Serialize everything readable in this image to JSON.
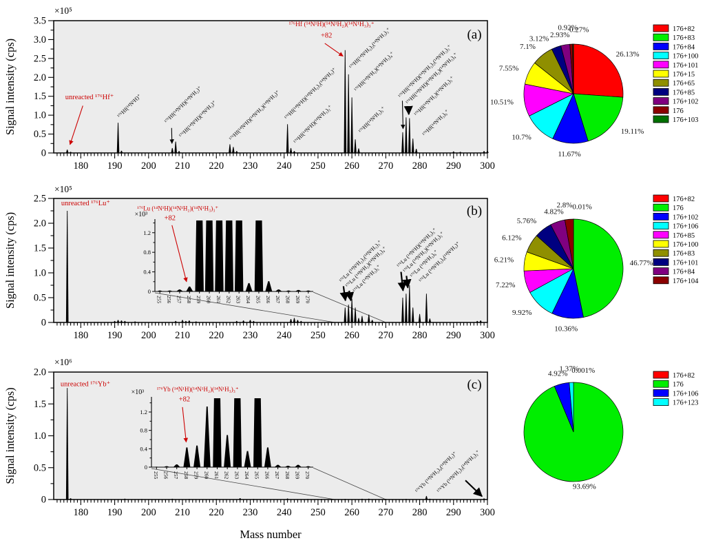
{
  "figure": {
    "xlabel": "Mass number",
    "ylabel": "Signal intensity (cps)",
    "plot_bg": "#ececec",
    "accent_red": "#cc0000",
    "panel_tags": [
      "(a)",
      "(b)",
      "(c)"
    ]
  },
  "chart_data": [
    {
      "id": "spec-a",
      "type": "bar",
      "panel_tag": "(a)",
      "ylabel": "Signal intensity (cps)",
      "scale_label": "×10⁵",
      "xlim": [
        172,
        300
      ],
      "ylim": [
        0,
        3.5
      ],
      "xticks": [
        180,
        190,
        200,
        210,
        220,
        230,
        240,
        250,
        260,
        270,
        280,
        290,
        300
      ],
      "yticks": [
        "0",
        "0.5",
        "1.0",
        "1.5",
        "2.0",
        "2.5",
        "3.0",
        "3.5"
      ],
      "peaks": [
        [
          176,
          0.09
        ],
        [
          177,
          0.03
        ],
        [
          191,
          0.8
        ],
        [
          192,
          0.06
        ],
        [
          207,
          0.13
        ],
        [
          208,
          0.3
        ],
        [
          209,
          0.05
        ],
        [
          224,
          0.23
        ],
        [
          225,
          0.16
        ],
        [
          226,
          0.05
        ],
        [
          241,
          0.76
        ],
        [
          242,
          0.13
        ],
        [
          243,
          0.05
        ],
        [
          258,
          2.72
        ],
        [
          259,
          2.08
        ],
        [
          260,
          1.47
        ],
        [
          261,
          0.36
        ],
        [
          262,
          0.12
        ],
        [
          275,
          0.55
        ],
        [
          276,
          0.94
        ],
        [
          277,
          0.92
        ],
        [
          278,
          0.38
        ],
        [
          279,
          0.11
        ],
        [
          290,
          0.04
        ],
        [
          292,
          0.03
        ],
        [
          299,
          0.05
        ],
        [
          300,
          0.06
        ]
      ],
      "annotations": [
        {
          "text": "unreacted ¹⁷⁶Hf⁺",
          "color": "#cc0000",
          "x": 175.4,
          "y": 1.42,
          "anchor": "start",
          "fs": 10.5,
          "arrow": [
            180.6,
            1.25,
            176.8,
            0.22
          ]
        },
        {
          "text": "¹⁷⁶Hf(¹⁴N¹H)⁺",
          "rot": -45,
          "x": 191.4,
          "y": 0.92,
          "fs": 8
        },
        {
          "text": "¹⁷⁶Hf(¹⁴N¹H)(¹⁴N¹H₂)⁺",
          "rot": -45,
          "x": 205.3,
          "y": 0.78,
          "fs": 8,
          "arrow": [
            206.8,
            0.66,
            206.9,
            0.25
          ]
        },
        {
          "text": "¹⁷⁶Hf(¹⁴N¹H)(¹⁴N¹H₃)⁺",
          "rot": -45,
          "x": 209.6,
          "y": 0.4,
          "fs": 8
        },
        {
          "text": "¹⁷⁶Hf(¹⁴N¹H)(¹⁴N¹H₂)(¹⁴N¹H₃)⁺",
          "rot": -45,
          "x": 224.4,
          "y": 0.32,
          "fs": 8
        },
        {
          "text": "¹⁷⁶Hf(¹⁴N¹H)(¹⁴N¹H₂)₂(¹⁴N¹H₃)⁺",
          "rot": -45,
          "x": 240.7,
          "y": 0.88,
          "fs": 8
        },
        {
          "text": "¹⁷⁶Hf(¹⁴N¹H)(¹⁴N¹H₃)₂⁺",
          "rot": -45,
          "x": 243.4,
          "y": 0.24,
          "fs": 8
        },
        {
          "text": "¹⁷⁶Hf (¹⁴N¹H)(¹⁴N¹H₂)(¹⁴N¹H₃)₃⁺",
          "color": "#cc0000",
          "x": 254,
          "y": 3.35,
          "anchor": "middle",
          "fs": 9.5
        },
        {
          "text": "+82",
          "color": "#cc0000",
          "x": 252.5,
          "y": 3.05,
          "anchor": "middle",
          "fs": 10.5,
          "arrow": [
            252,
            2.9,
            257.4,
            2.56
          ]
        },
        {
          "text": "¹⁷⁶Hf(¹⁴N¹H₂)₂(¹⁴N¹H₃)₃⁺",
          "rot": -45,
          "x": 259.8,
          "y": 2.22,
          "fs": 8
        },
        {
          "text": "¹⁷⁶Hf(¹⁴N¹H₂)(¹⁴N¹H₃)₄⁺",
          "rot": -45,
          "x": 261.3,
          "y": 1.62,
          "fs": 8
        },
        {
          "text": "¹⁷⁶Hf(¹⁴N¹H₃)₅⁺",
          "rot": -45,
          "x": 262.6,
          "y": 0.52,
          "fs": 8
        },
        {
          "text": "¹⁷⁶Hf(¹⁴N¹H)(¹⁴N¹H₂)₂(¹⁴N¹H₃)₃⁺",
          "rot": -45,
          "x": 274.3,
          "y": 1.45,
          "fs": 8,
          "arrow": [
            274.9,
            1.38,
            275.1,
            0.64
          ]
        },
        {
          "text": "¹⁷⁶Hf(¹⁴N¹H)(¹⁴N¹H₂)(¹⁴N¹H₃)₄⁺",
          "rot": -45,
          "x": 276.5,
          "y": 1.28,
          "fs": 8,
          "arrow": [
            276.7,
            1.2,
            276.8,
            1.02
          ],
          "bold": true
        },
        {
          "text": "¹⁷⁶Hf(¹⁴N¹H₂)(¹⁴N¹H₃)₅⁺",
          "rot": -45,
          "x": 279.0,
          "y": 0.97,
          "fs": 8
        },
        {
          "text": "¹⁷⁶Hf(¹⁴N¹H₃)₆⁺",
          "rot": -45,
          "x": 281.4,
          "y": 0.44,
          "fs": 8
        }
      ]
    },
    {
      "id": "pie-a",
      "type": "pie",
      "slices": [
        {
          "label": "176+82",
          "pct": "26.13",
          "color": "#ff0000",
          "lr": 1.17
        },
        {
          "label": "176+83",
          "pct": "19.11",
          "color": "#00ee00"
        },
        {
          "label": "176+84",
          "pct": "11.67",
          "color": "#0000ff"
        },
        {
          "label": "176+100",
          "pct": "10.7",
          "color": "#00ffff"
        },
        {
          "label": "176+101",
          "pct": "10.51",
          "color": "#ff00ff"
        },
        {
          "label": "176+15",
          "pct": "7.55",
          "color": "#ffff00"
        },
        {
          "label": "176+65",
          "pct": "7.1",
          "color": "#8f8f00"
        },
        {
          "label": "176+85",
          "pct": "3.12",
          "color": "#000080",
          "la": 336
        },
        {
          "label": "176+102",
          "pct": "2.93",
          "color": "#800080",
          "la": 347
        },
        {
          "label": "176",
          "pct": "0.92",
          "color": "#8b0000",
          "la": 355,
          "lr": 1.34
        },
        {
          "label": "176+103",
          "pct": "0.27",
          "color": "#007000",
          "la": 5,
          "lr": 1.3
        }
      ]
    },
    {
      "id": "spec-b",
      "type": "bar",
      "panel_tag": "(b)",
      "ylabel": "Signal intensity (cps)",
      "scale_label": "×10⁵",
      "xlim": [
        172,
        300
      ],
      "ylim": [
        0,
        2.5
      ],
      "xticks": [
        180,
        190,
        200,
        210,
        220,
        230,
        240,
        250,
        260,
        270,
        280,
        290,
        300
      ],
      "yticks": [
        "0",
        "0.5",
        "1.0",
        "1.5",
        "2.0",
        "2.5"
      ],
      "peaks": [
        [
          176,
          2.25
        ],
        [
          190,
          0.03
        ],
        [
          191,
          0.05
        ],
        [
          192,
          0.04
        ],
        [
          193,
          0.03
        ],
        [
          196,
          0.02
        ],
        [
          208,
          0.03
        ],
        [
          210,
          0.05
        ],
        [
          211,
          0.03
        ],
        [
          212,
          0.04
        ],
        [
          214,
          0.02
        ],
        [
          226,
          0.03
        ],
        [
          228,
          0.04
        ],
        [
          230,
          0.05
        ],
        [
          231,
          0.03
        ],
        [
          242,
          0.07
        ],
        [
          243,
          0.09
        ],
        [
          244,
          0.05
        ],
        [
          245,
          0.03
        ],
        [
          258,
          0.3
        ],
        [
          259,
          0.36
        ],
        [
          260,
          0.48
        ],
        [
          261,
          0.3
        ],
        [
          262,
          0.09
        ],
        [
          263,
          0.13
        ],
        [
          265,
          0.16
        ],
        [
          266,
          0.05
        ],
        [
          275,
          0.5
        ],
        [
          276,
          0.58
        ],
        [
          277,
          0.75
        ],
        [
          278,
          0.3
        ],
        [
          280,
          0.17
        ],
        [
          282,
          0.58
        ],
        [
          283,
          0.08
        ],
        [
          297,
          0.03
        ],
        [
          298,
          0.04
        ]
      ],
      "inset": {
        "scale_label": "×10³",
        "xlim": [
          254.5,
          270.5
        ],
        "xticks": [
          255,
          256,
          257,
          258,
          259,
          260,
          261,
          262,
          263,
          264,
          265,
          266,
          267,
          268,
          269,
          270
        ],
        "ylim": [
          0,
          1.45
        ],
        "yticks": [
          "0",
          "0.4",
          "0.8",
          "1.2"
        ],
        "bars": [
          [
            255,
            0.02
          ],
          [
            256,
            0.02
          ],
          [
            257,
            0.04
          ],
          [
            258,
            0.1
          ],
          [
            259,
            1.6
          ],
          [
            260,
            1.6
          ],
          [
            261,
            1.6
          ],
          [
            262,
            1.6
          ],
          [
            263,
            1.6
          ],
          [
            264,
            0.17
          ],
          [
            265,
            1.6
          ],
          [
            266,
            0.21
          ],
          [
            267,
            0.04
          ],
          [
            268,
            0.02
          ],
          [
            269,
            0.03
          ],
          [
            270,
            0.02
          ]
        ]
      },
      "annotations": [
        {
          "text": "unreacted ¹⁷⁶Lu⁺",
          "color": "#cc0000",
          "x": 174.2,
          "y": 2.36,
          "anchor": "start",
          "fs": 10.5
        },
        {
          "text": "¹⁷⁶Lu (¹⁴N¹H)(¹⁴N¹H₂)(¹⁴N¹H₃)₃⁺",
          "color": "#cc0000",
          "x": 208.6,
          "y": 2.26,
          "anchor": "middle",
          "fs": 9
        },
        {
          "text": "+82",
          "color": "#cc0000",
          "x": 206.3,
          "y": 2.06,
          "anchor": "middle",
          "fs": 10.5,
          "arrow": [
            206.9,
            1.96,
            211.2,
            0.82
          ]
        },
        {
          "text": "¹⁷⁶Lu (¹⁴N¹H₂)₂(¹⁴N¹H₃)₃⁺",
          "rot": -45,
          "x": 256.9,
          "y": 0.8,
          "fs": 8,
          "arrow": [
            257.5,
            0.73,
            258.1,
            0.44
          ],
          "bold": true
        },
        {
          "text": "¹⁷⁶Lu (¹⁴N¹H₂)(¹⁴N¹H₃)₄⁺",
          "rot": -45,
          "x": 258.7,
          "y": 0.7,
          "fs": 8,
          "arrow": [
            259.2,
            0.64,
            259.7,
            0.44
          ],
          "bold": true
        },
        {
          "text": "¹⁷⁶Lu (¹⁴N¹H₃)₅⁺",
          "rot": -45,
          "x": 260.9,
          "y": 0.6,
          "fs": 8
        },
        {
          "text": "¹⁷⁶Lu (¹⁴N¹H)(¹⁴N¹H₃)₅⁺",
          "rot": -45,
          "x": 273.9,
          "y": 1.1,
          "fs": 8,
          "arrow": [
            274.5,
            1.02,
            275.1,
            0.64
          ],
          "bold": true
        },
        {
          "text": "¹⁷⁶Lu (¹⁴N¹H₂)(¹⁴N¹H₃)₅⁺",
          "rot": -45,
          "x": 275.7,
          "y": 1.0,
          "fs": 8,
          "arrow": [
            276.1,
            0.94,
            276.5,
            0.7
          ],
          "bold": true
        },
        {
          "text": "¹⁷⁶Lu (¹⁴N¹H₃)₆⁺",
          "rot": -45,
          "x": 277.8,
          "y": 0.9,
          "fs": 8
        },
        {
          "text": "¹⁷⁶Lu (¹⁴N¹H₂)₄(¹⁴N¹H₃)⁺",
          "rot": -45,
          "x": 280.4,
          "y": 0.8,
          "fs": 8
        }
      ]
    },
    {
      "id": "pie-b",
      "type": "pie",
      "slices": [
        {
          "label": "176+82",
          "pct": "0.01",
          "color": "#ff0000",
          "la": 8,
          "lr": 1.26
        },
        {
          "label": "176",
          "pct": "46.77",
          "color": "#00ee00",
          "lr": 1.14
        },
        {
          "label": "176+102",
          "pct": "10.36",
          "color": "#0000ff"
        },
        {
          "label": "176+106",
          "pct": "9.92",
          "color": "#00ffff"
        },
        {
          "label": "176+85",
          "pct": "7.22",
          "color": "#ff00ff"
        },
        {
          "label": "176+100",
          "pct": "6.21",
          "color": "#ffff00"
        },
        {
          "label": "176+83",
          "pct": "6.12",
          "color": "#8f8f00"
        },
        {
          "label": "176+101",
          "pct": "5.76",
          "color": "#000080"
        },
        {
          "label": "176+84",
          "pct": "4.82",
          "color": "#800080",
          "la": 341
        },
        {
          "label": "176+104",
          "pct": "2.8",
          "color": "#8b0000",
          "la": 352,
          "lr": 1.3
        }
      ]
    },
    {
      "id": "spec-c",
      "type": "bar",
      "panel_tag": "(c)",
      "ylabel": "Signal intensity (cps)",
      "scale_label": "×10⁶",
      "xlabel": "Mass number",
      "xlim": [
        172,
        300
      ],
      "ylim": [
        0,
        2.0
      ],
      "xticks": [
        180,
        190,
        200,
        210,
        220,
        230,
        240,
        250,
        260,
        270,
        280,
        290,
        300
      ],
      "yticks": [
        "0",
        "0.5",
        "1.0",
        "1.5",
        "2.0"
      ],
      "peaks": [
        [
          176,
          1.75
        ],
        [
          177,
          0.02
        ],
        [
          193,
          0.013
        ],
        [
          198,
          0.008
        ],
        [
          207,
          0.012
        ],
        [
          212,
          0.008
        ],
        [
          220,
          0.008
        ],
        [
          227,
          0.022
        ],
        [
          231,
          0.01
        ],
        [
          241,
          0.016
        ],
        [
          247,
          0.008
        ],
        [
          251,
          0.01
        ],
        [
          258,
          0.009
        ],
        [
          263,
          0.012
        ],
        [
          265,
          0.014
        ],
        [
          270,
          0.009
        ],
        [
          276,
          0.01
        ],
        [
          282,
          0.055
        ],
        [
          283,
          0.012
        ],
        [
          299,
          0.018
        ]
      ],
      "inset": {
        "scale_label": "×10³",
        "xlim": [
          254.5,
          270.5
        ],
        "xticks": [
          255,
          256,
          257,
          258,
          259,
          260,
          261,
          262,
          263,
          264,
          265,
          266,
          267,
          268,
          269,
          270
        ],
        "ylim": [
          0,
          1.5
        ],
        "yticks": [
          "0",
          "0.4",
          "0.8",
          "1.2"
        ],
        "bars": [
          [
            255,
            0.01
          ],
          [
            256,
            0.02
          ],
          [
            257,
            0.06
          ],
          [
            258,
            0.43
          ],
          [
            259,
            0.47
          ],
          [
            260,
            1.32
          ],
          [
            261,
            1.7
          ],
          [
            262,
            0.7
          ],
          [
            263,
            1.7
          ],
          [
            264,
            0.35
          ],
          [
            265,
            1.7
          ],
          [
            266,
            0.43
          ],
          [
            267,
            0.05
          ],
          [
            268,
            0.03
          ],
          [
            269,
            0.05
          ],
          [
            270,
            0.02
          ]
        ]
      },
      "annotations": [
        {
          "text": "unreacted ¹⁷⁶Yb⁺",
          "color": "#cc0000",
          "x": 174.0,
          "y": 1.78,
          "anchor": "start",
          "fs": 10.5
        },
        {
          "text": "¹⁷⁶Yb (¹⁴N¹H)(¹⁴N¹H₂)(¹⁴N¹H₃)₃⁺",
          "color": "#cc0000",
          "x": 214.5,
          "y": 1.7,
          "anchor": "middle",
          "fs": 9
        },
        {
          "text": "+82",
          "color": "#cc0000",
          "x": 210.6,
          "y": 1.54,
          "anchor": "middle",
          "fs": 10.5,
          "arrow": [
            210.0,
            1.45,
            211.1,
            0.9
          ]
        },
        {
          "text": "¹⁷⁶Yb (¹⁴N¹H₂)₄(¹⁴N¹H₃)⁺",
          "rot": -45,
          "x": 279.3,
          "y": 0.1,
          "fs": 8
        },
        {
          "text": "¹⁷⁶Yb (¹⁴N¹H₂)₃(¹⁴N¹H₃)₂⁺",
          "rot": -45,
          "x": 285.7,
          "y": 0.1,
          "fs": 8,
          "arrow": [
            293.5,
            0.3,
            298.4,
            0.05
          ],
          "bold": true
        }
      ]
    },
    {
      "id": "pie-c",
      "type": "pie",
      "slices": [
        {
          "label": "176+82",
          "pct": "0.001",
          "color": "#ff0000",
          "la": 9,
          "lr": 1.26
        },
        {
          "label": "176",
          "pct": "93.69",
          "color": "#00ee00",
          "lr": 1.12
        },
        {
          "label": "176+106",
          "pct": "4.92",
          "color": "#0000ff",
          "la": 345
        },
        {
          "label": "176+123",
          "pct": "1.37",
          "color": "#00ffff",
          "la": 356,
          "lr": 1.28
        }
      ]
    }
  ]
}
